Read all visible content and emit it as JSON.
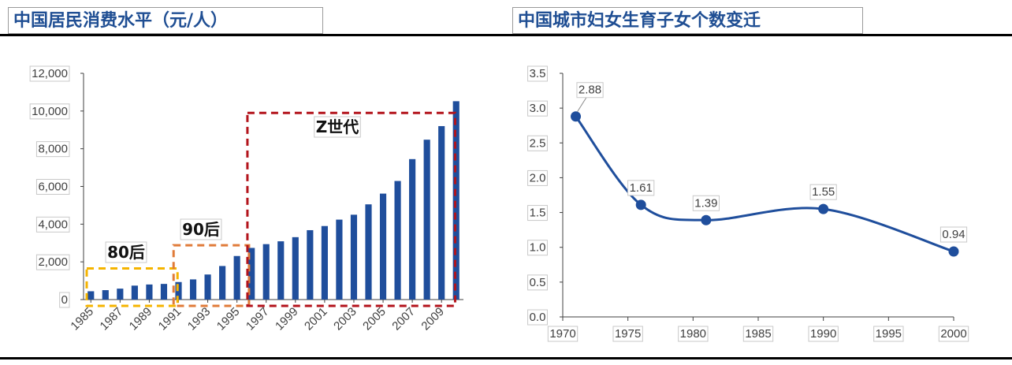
{
  "colors": {
    "bar": "#1f4e9c",
    "line": "#1f4e9c",
    "gen80": "#f5b400",
    "gen90": "#e07b39",
    "genZ": "#b3131b",
    "title": "#1f4e93"
  },
  "chart_data": [
    {
      "type": "bar",
      "title": "中国居民消费水平（元/人）",
      "x": [
        1985,
        1986,
        1987,
        1988,
        1989,
        1990,
        1991,
        1992,
        1993,
        1994,
        1995,
        1996,
        1997,
        1998,
        1999,
        2000,
        2001,
        2002,
        2003,
        2004,
        2005,
        2006,
        2007,
        2008,
        2009,
        2010
      ],
      "x_tick_labels": [
        "1985",
        "1987",
        "1989",
        "1991",
        "1993",
        "1995",
        "1997",
        "1999",
        "2001",
        "2003",
        "2005",
        "2007",
        "2009"
      ],
      "values": [
        440,
        500,
        580,
        740,
        800,
        830,
        930,
        1070,
        1330,
        1780,
        2310,
        2740,
        2940,
        3090,
        3310,
        3680,
        3900,
        4240,
        4500,
        5050,
        5620,
        6290,
        7450,
        8480,
        9200,
        10520
      ],
      "ylim": [
        0,
        12000
      ],
      "y_ticks": [
        "0",
        "2,000",
        "4,000",
        "6,000",
        "8,000",
        "10,000",
        "12,000"
      ],
      "annotations": [
        {
          "label": "80后",
          "from": 1985,
          "to": 1990,
          "color": "gen80"
        },
        {
          "label": "90后",
          "from": 1991,
          "to": 1995,
          "color": "gen90"
        },
        {
          "label": "Z世代",
          "from": 1996,
          "to": 2009,
          "color": "genZ"
        }
      ]
    },
    {
      "type": "line",
      "title": "中国城市妇女生育子女个数变迁",
      "x": [
        1971,
        1976,
        1981,
        1990,
        2000
      ],
      "y": [
        2.88,
        1.61,
        1.39,
        1.55,
        0.94
      ],
      "data_labels": [
        "2.88",
        "1.61",
        "1.39",
        "1.55",
        "0.94"
      ],
      "xlim": [
        1970,
        2000
      ],
      "ylim": [
        0,
        3.5
      ],
      "x_ticks": [
        "1970",
        "1975",
        "1980",
        "1985",
        "1990",
        "1995",
        "2000"
      ],
      "y_ticks": [
        "0.0",
        "0.5",
        "1.0",
        "1.5",
        "2.0",
        "2.5",
        "3.0",
        "3.5"
      ]
    }
  ]
}
